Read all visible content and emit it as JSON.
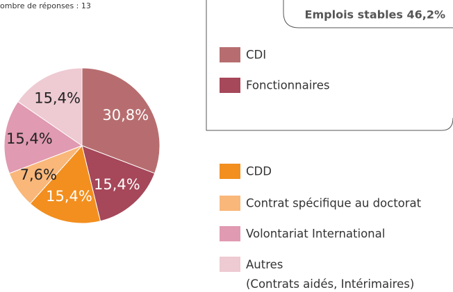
{
  "chart_data": {
    "type": "pie",
    "subtitle": "ombre de réponses : 13",
    "annotation": "Emplois stables 46,2%",
    "categories": [
      "CDI",
      "Fonctionnaires",
      "CDD",
      "Contrat spécifique au doctorat",
      "Volontariat International",
      "Autres\n(Contrats aidés, Intérimaires)"
    ],
    "values": [
      30.8,
      15.4,
      15.4,
      7.6,
      15.4,
      15.4
    ],
    "value_labels": [
      "30,8%",
      "15,4%",
      "15,4%",
      "7,6%",
      "15,4%",
      "15,4%"
    ],
    "colors": [
      "#b76d6f",
      "#a6475a",
      "#f28f1f",
      "#f9b77a",
      "#e09ab1",
      "#eecad2"
    ]
  }
}
